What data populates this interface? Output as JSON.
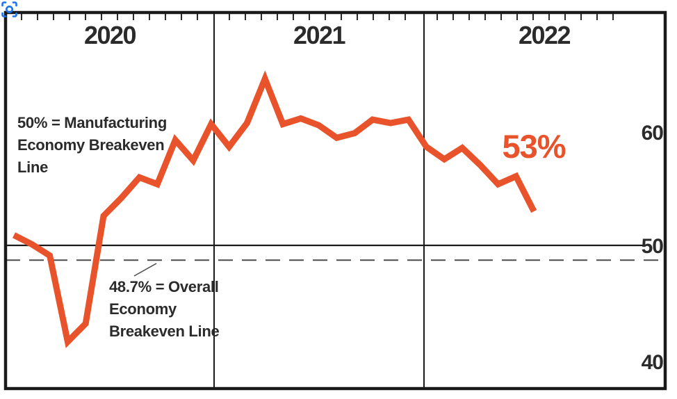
{
  "page": {
    "background": "#ffffff"
  },
  "chart_data": {
    "type": "line",
    "title": "",
    "x_sections": [
      "2020",
      "2021",
      "2022"
    ],
    "x": [
      "Jan 2020",
      "Feb 2020",
      "Mar 2020",
      "Apr 2020",
      "May 2020",
      "Jun 2020",
      "Jul 2020",
      "Aug 2020",
      "Sep 2020",
      "Oct 2020",
      "Nov 2020",
      "Dec 2020",
      "Jan 2021",
      "Feb 2021",
      "Mar 2021",
      "Apr 2021",
      "May 2021",
      "Jun 2021",
      "Jul 2021",
      "Aug 2021",
      "Sep 2021",
      "Oct 2021",
      "Nov 2021",
      "Dec 2021",
      "Jan 2022",
      "Feb 2022",
      "Mar 2022",
      "Apr 2022",
      "May 2022",
      "Jun 2022"
    ],
    "series": [
      {
        "name": "manufacturing_pmi_percent",
        "values": [
          50.9,
          50.1,
          49.1,
          41.5,
          43.1,
          52.6,
          54.2,
          56.0,
          55.4,
          59.3,
          57.5,
          60.7,
          58.7,
          60.8,
          64.7,
          60.7,
          61.2,
          60.6,
          59.5,
          59.9,
          61.1,
          60.8,
          61.1,
          58.7,
          57.6,
          58.6,
          57.1,
          55.4,
          56.1,
          53.0
        ]
      }
    ],
    "end_label": "53%",
    "y_ticks": [
      60,
      50,
      40
    ],
    "y_tick_labels": [
      "60",
      "50",
      "40"
    ],
    "ylim": [
      38,
      67
    ],
    "grid": "off",
    "reference_lines": [
      {
        "value": 50,
        "style": "solid",
        "label_lines": [
          "50% = Manufacturing",
          "Economy Breakeven",
          "Line"
        ]
      },
      {
        "value": 48.7,
        "style": "dashed",
        "label_lines": [
          "48.7% = Overall",
          "Economy",
          "Breakeven Line"
        ]
      }
    ],
    "colors": {
      "line": "#e8532b",
      "text": "#2b2b2b",
      "frame": "#1a1a1a",
      "dashed_line": "#4a4a4a"
    }
  },
  "overlay": {
    "screenshot_icon_color": "#1a73e8"
  }
}
